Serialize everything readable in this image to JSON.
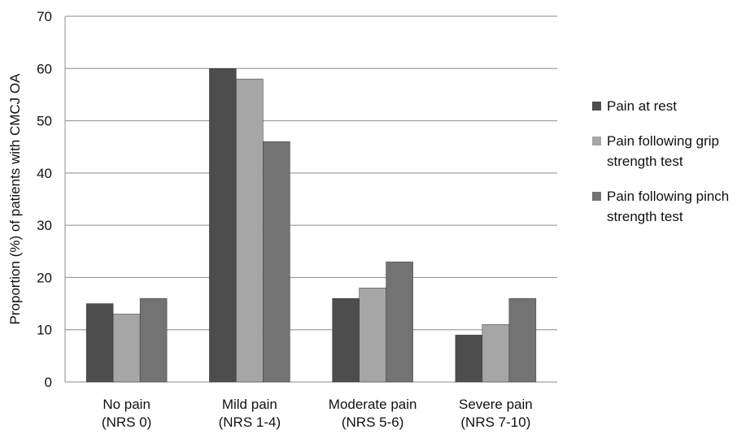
{
  "chart_data": {
    "type": "bar",
    "ylabel": "Proportion (%) of patients with CMCJ OA",
    "ylim": [
      0,
      70
    ],
    "yticks": [
      0,
      10,
      20,
      30,
      40,
      50,
      60,
      70
    ],
    "grid": true,
    "legend_position": "right",
    "categories": [
      [
        "No pain",
        "(NRS 0)"
      ],
      [
        "Mild pain",
        "(NRS 1-4)"
      ],
      [
        "Moderate pain",
        "(NRS 5-6)"
      ],
      [
        "Severe pain",
        "(NRS 7-10)"
      ]
    ],
    "series": [
      {
        "name": "Pain at rest",
        "color": "#4d4d4d",
        "values": [
          15,
          60,
          16,
          9
        ]
      },
      {
        "name": "Pain following grip strength test",
        "color": "#a6a6a6",
        "values": [
          13,
          58,
          18,
          11
        ]
      },
      {
        "name": "Pain following pinch strength test",
        "color": "#737373",
        "values": [
          16,
          46,
          23,
          16
        ]
      }
    ]
  }
}
